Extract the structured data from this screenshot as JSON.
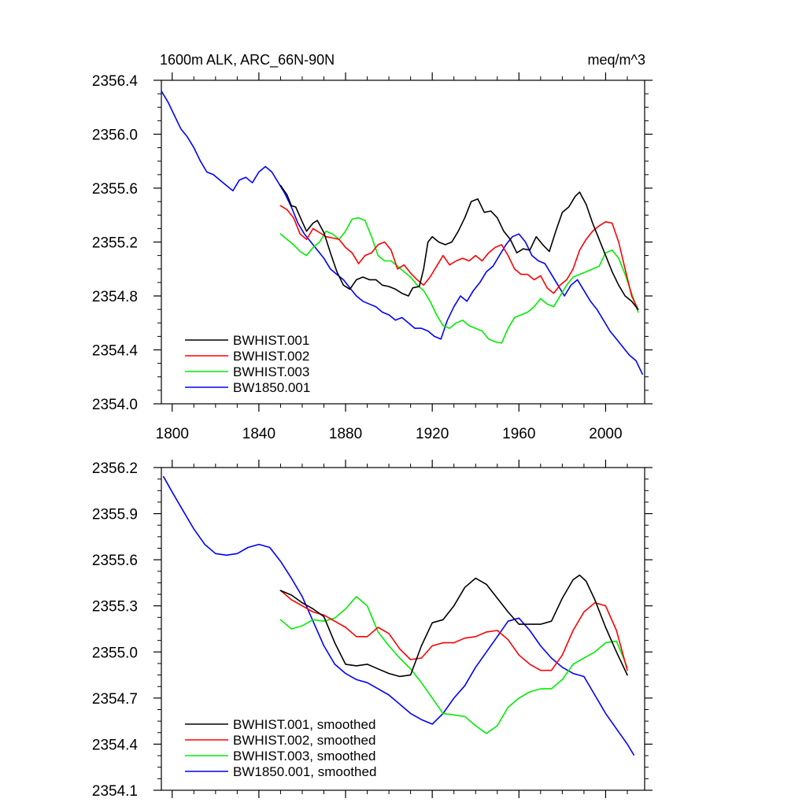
{
  "colors": {
    "BWHIST.001": "#000000",
    "BWHIST.002": "#ff0000",
    "BWHIST.003": "#00ee00",
    "BW1850.001": "#0000ff"
  },
  "chart_data": [
    {
      "type": "line",
      "title_left": "1600m ALK, ARC_66N-90N",
      "title_right": "meq/m^3",
      "xlim": [
        1795,
        2018
      ],
      "ylim": [
        2354.0,
        2356.4
      ],
      "xticks": [
        1800,
        1840,
        1880,
        1920,
        1960,
        2000
      ],
      "yticks": [
        2354.0,
        2354.4,
        2354.8,
        2355.2,
        2355.6,
        2356.0,
        2356.4
      ],
      "ytick_labels": [
        "2354.0",
        "2354.4",
        "2354.8",
        "2355.2",
        "2355.6",
        "2356.0",
        "2356.4"
      ],
      "show_xtick_labels": true,
      "legend_position": "bottom-left",
      "series": [
        {
          "name": "BWHIST.001",
          "x": [
            1850,
            1853,
            1855,
            1857,
            1860,
            1862,
            1865,
            1867,
            1870,
            1873,
            1876,
            1879,
            1882,
            1885,
            1888,
            1891,
            1894,
            1897,
            1900,
            1903,
            1906,
            1909,
            1911,
            1914,
            1916,
            1918,
            1920,
            1923,
            1926,
            1929,
            1932,
            1935,
            1938,
            1941,
            1944,
            1947,
            1950,
            1953,
            1956,
            1959,
            1962,
            1965,
            1968,
            1971,
            1974,
            1977,
            1980,
            1983,
            1986,
            1988,
            1991,
            1994,
            1997,
            2000,
            2003,
            2006,
            2009,
            2012,
            2015
          ],
          "values": [
            2355.62,
            2355.55,
            2355.47,
            2355.46,
            2355.35,
            2355.28,
            2355.34,
            2355.36,
            2355.27,
            2355.12,
            2354.98,
            2354.88,
            2354.85,
            2354.92,
            2354.94,
            2354.92,
            2354.92,
            2354.88,
            2354.87,
            2354.85,
            2354.82,
            2354.8,
            2354.86,
            2354.87,
            2355.0,
            2355.2,
            2355.24,
            2355.2,
            2355.18,
            2355.2,
            2355.28,
            2355.38,
            2355.5,
            2355.52,
            2355.42,
            2355.43,
            2355.38,
            2355.28,
            2355.22,
            2355.12,
            2355.15,
            2355.14,
            2355.24,
            2355.18,
            2355.13,
            2355.28,
            2355.42,
            2355.46,
            2355.54,
            2355.57,
            2355.48,
            2355.34,
            2355.22,
            2355.1,
            2354.98,
            2354.88,
            2354.8,
            2354.76,
            2354.7
          ]
        },
        {
          "name": "BWHIST.002",
          "x": [
            1850,
            1853,
            1856,
            1859,
            1862,
            1865,
            1868,
            1871,
            1874,
            1877,
            1880,
            1883,
            1886,
            1889,
            1892,
            1895,
            1898,
            1901,
            1904,
            1907,
            1910,
            1913,
            1916,
            1919,
            1922,
            1925,
            1928,
            1931,
            1934,
            1937,
            1940,
            1943,
            1946,
            1949,
            1952,
            1955,
            1958,
            1961,
            1964,
            1967,
            1970,
            1973,
            1976,
            1979,
            1982,
            1985,
            1988,
            1991,
            1994,
            1997,
            2000,
            2003,
            2006,
            2009,
            2012,
            2015
          ],
          "values": [
            2355.47,
            2355.44,
            2355.38,
            2355.26,
            2355.22,
            2355.3,
            2355.27,
            2355.24,
            2355.23,
            2355.22,
            2355.16,
            2355.12,
            2355.04,
            2355.1,
            2355.12,
            2355.18,
            2355.2,
            2355.14,
            2355.0,
            2355.03,
            2354.97,
            2354.92,
            2354.88,
            2354.94,
            2355.02,
            2355.1,
            2355.03,
            2355.06,
            2355.08,
            2355.06,
            2355.1,
            2355.06,
            2355.12,
            2355.16,
            2355.18,
            2355.1,
            2355.0,
            2354.96,
            2354.96,
            2354.92,
            2354.95,
            2354.86,
            2354.82,
            2354.88,
            2354.92,
            2355.0,
            2355.14,
            2355.22,
            2355.28,
            2355.32,
            2355.35,
            2355.34,
            2355.2,
            2355.0,
            2354.8,
            2354.7
          ]
        },
        {
          "name": "BWHIST.003",
          "x": [
            1850,
            1853,
            1856,
            1859,
            1862,
            1865,
            1868,
            1871,
            1874,
            1877,
            1880,
            1883,
            1886,
            1889,
            1892,
            1895,
            1898,
            1901,
            1904,
            1907,
            1910,
            1913,
            1916,
            1919,
            1922,
            1925,
            1928,
            1931,
            1934,
            1937,
            1940,
            1943,
            1946,
            1949,
            1952,
            1955,
            1958,
            1961,
            1964,
            1967,
            1970,
            1973,
            1976,
            1979,
            1982,
            1985,
            1988,
            1991,
            1994,
            1997,
            2000,
            2003,
            2006,
            2009,
            2012,
            2015
          ],
          "values": [
            2355.26,
            2355.22,
            2355.18,
            2355.13,
            2355.1,
            2355.16,
            2355.2,
            2355.28,
            2355.26,
            2355.22,
            2355.28,
            2355.37,
            2355.38,
            2355.36,
            2355.24,
            2355.1,
            2355.06,
            2355.06,
            2355.02,
            2354.98,
            2354.94,
            2354.88,
            2354.84,
            2354.76,
            2354.66,
            2354.58,
            2354.56,
            2354.6,
            2354.62,
            2354.58,
            2354.56,
            2354.54,
            2354.48,
            2354.46,
            2354.45,
            2354.56,
            2354.64,
            2354.66,
            2354.68,
            2354.72,
            2354.78,
            2354.74,
            2354.72,
            2354.8,
            2354.88,
            2354.94,
            2354.96,
            2354.98,
            2355.0,
            2355.02,
            2355.12,
            2355.14,
            2355.08,
            2354.96,
            2354.82,
            2354.68
          ]
        },
        {
          "name": "BW1850.001",
          "x": [
            1795,
            1798,
            1801,
            1804,
            1807,
            1810,
            1813,
            1816,
            1819,
            1822,
            1825,
            1828,
            1831,
            1834,
            1837,
            1840,
            1843,
            1846,
            1849,
            1852,
            1855,
            1858,
            1861,
            1864,
            1867,
            1870,
            1873,
            1876,
            1879,
            1882,
            1885,
            1888,
            1891,
            1894,
            1897,
            1900,
            1903,
            1906,
            1909,
            1912,
            1915,
            1918,
            1921,
            1924,
            1927,
            1930,
            1933,
            1936,
            1939,
            1942,
            1945,
            1948,
            1951,
            1954,
            1957,
            1960,
            1963,
            1966,
            1969,
            1972,
            1975,
            1978,
            1981,
            1984,
            1987,
            1990,
            1993,
            1996,
            1999,
            2002,
            2005,
            2008,
            2011,
            2014,
            2017
          ],
          "values": [
            2356.32,
            2356.24,
            2356.14,
            2356.04,
            2355.98,
            2355.9,
            2355.8,
            2355.72,
            2355.7,
            2355.66,
            2355.62,
            2355.58,
            2355.66,
            2355.68,
            2355.64,
            2355.72,
            2355.76,
            2355.72,
            2355.64,
            2355.56,
            2355.46,
            2355.34,
            2355.26,
            2355.2,
            2355.14,
            2355.08,
            2355.0,
            2354.96,
            2354.92,
            2354.86,
            2354.8,
            2354.76,
            2354.74,
            2354.72,
            2354.68,
            2354.66,
            2354.62,
            2354.64,
            2354.6,
            2354.56,
            2354.56,
            2354.54,
            2354.5,
            2354.48,
            2354.62,
            2354.72,
            2354.8,
            2354.76,
            2354.84,
            2354.9,
            2354.98,
            2355.02,
            2355.1,
            2355.18,
            2355.24,
            2355.26,
            2355.2,
            2355.1,
            2355.06,
            2355.04,
            2354.96,
            2354.88,
            2354.8,
            2354.88,
            2354.92,
            2354.84,
            2354.76,
            2354.7,
            2354.62,
            2354.54,
            2354.48,
            2354.42,
            2354.36,
            2354.32,
            2354.22
          ]
        }
      ]
    },
    {
      "type": "line",
      "xlim": [
        1795,
        2018
      ],
      "ylim": [
        2354.1,
        2356.2
      ],
      "xticks": [
        1800,
        1840,
        1880,
        1920,
        1960,
        2000
      ],
      "yticks": [
        2354.1,
        2354.4,
        2354.7,
        2355.0,
        2355.3,
        2355.6,
        2355.9,
        2356.2
      ],
      "ytick_labels": [
        "2354.1",
        "2354.4",
        "2354.7",
        "2355.0",
        "2355.3",
        "2355.6",
        "2355.9",
        "2356.2"
      ],
      "show_xtick_labels": false,
      "legend_position": "bottom-left",
      "series": [
        {
          "name": "BWHIST.001, smoothed",
          "x": [
            1850,
            1855,
            1860,
            1865,
            1870,
            1875,
            1880,
            1885,
            1890,
            1895,
            1900,
            1905,
            1910,
            1915,
            1920,
            1925,
            1930,
            1935,
            1940,
            1945,
            1950,
            1955,
            1960,
            1965,
            1970,
            1975,
            1980,
            1985,
            1988,
            1991,
            1995,
            2000,
            2005,
            2010
          ],
          "values": [
            2355.4,
            2355.37,
            2355.32,
            2355.28,
            2355.23,
            2355.06,
            2354.92,
            2354.91,
            2354.92,
            2354.89,
            2354.86,
            2354.84,
            2354.85,
            2355.04,
            2355.19,
            2355.21,
            2355.3,
            2355.42,
            2355.48,
            2355.44,
            2355.35,
            2355.26,
            2355.18,
            2355.18,
            2355.18,
            2355.2,
            2355.35,
            2355.47,
            2355.5,
            2355.46,
            2355.34,
            2355.16,
            2355.0,
            2354.85
          ]
        },
        {
          "name": "BWHIST.002, smoothed",
          "x": [
            1850,
            1855,
            1860,
            1865,
            1870,
            1875,
            1880,
            1885,
            1890,
            1895,
            1900,
            1905,
            1910,
            1915,
            1920,
            1925,
            1930,
            1935,
            1940,
            1945,
            1950,
            1955,
            1960,
            1965,
            1970,
            1975,
            1980,
            1985,
            1990,
            1995,
            2000,
            2005,
            2010
          ],
          "values": [
            2355.4,
            2355.34,
            2355.3,
            2355.26,
            2355.24,
            2355.2,
            2355.16,
            2355.1,
            2355.1,
            2355.16,
            2355.12,
            2355.02,
            2354.95,
            2354.96,
            2355.04,
            2355.06,
            2355.06,
            2355.09,
            2355.1,
            2355.13,
            2355.14,
            2355.08,
            2354.98,
            2354.92,
            2354.88,
            2354.88,
            2354.98,
            2355.14,
            2355.26,
            2355.32,
            2355.3,
            2355.14,
            2354.88
          ]
        },
        {
          "name": "BWHIST.003, smoothed",
          "x": [
            1850,
            1855,
            1860,
            1865,
            1870,
            1875,
            1880,
            1885,
            1890,
            1895,
            1900,
            1905,
            1910,
            1915,
            1920,
            1925,
            1930,
            1935,
            1940,
            1945,
            1950,
            1955,
            1960,
            1965,
            1970,
            1975,
            1980,
            1985,
            1990,
            1995,
            2000,
            2005,
            2010
          ],
          "values": [
            2355.21,
            2355.15,
            2355.17,
            2355.21,
            2355.2,
            2355.22,
            2355.28,
            2355.36,
            2355.3,
            2355.13,
            2355.04,
            2354.96,
            2354.89,
            2354.8,
            2354.7,
            2354.6,
            2354.59,
            2354.58,
            2354.52,
            2354.47,
            2354.52,
            2354.64,
            2354.7,
            2354.74,
            2354.76,
            2354.76,
            2354.82,
            2354.92,
            2354.96,
            2355.0,
            2355.06,
            2355.07,
            2354.9
          ]
        },
        {
          "name": "BW1850.001, smoothed",
          "x": [
            1796,
            1800,
            1805,
            1810,
            1815,
            1820,
            1825,
            1830,
            1835,
            1840,
            1845,
            1850,
            1855,
            1860,
            1865,
            1870,
            1875,
            1880,
            1885,
            1890,
            1895,
            1900,
            1905,
            1910,
            1915,
            1920,
            1925,
            1930,
            1935,
            1940,
            1945,
            1950,
            1955,
            1960,
            1965,
            1970,
            1975,
            1980,
            1985,
            1990,
            1995,
            2000,
            2005,
            2010,
            2013
          ],
          "values": [
            2356.14,
            2356.04,
            2355.92,
            2355.8,
            2355.7,
            2355.64,
            2355.63,
            2355.64,
            2355.68,
            2355.7,
            2355.68,
            2355.59,
            2355.48,
            2355.36,
            2355.2,
            2355.04,
            2354.92,
            2354.86,
            2354.82,
            2354.8,
            2354.76,
            2354.72,
            2354.66,
            2354.6,
            2354.56,
            2354.53,
            2354.6,
            2354.7,
            2354.78,
            2354.9,
            2355.0,
            2355.1,
            2355.2,
            2355.22,
            2355.14,
            2355.04,
            2354.96,
            2354.9,
            2354.86,
            2354.84,
            2354.72,
            2354.6,
            2354.5,
            2354.4,
            2354.33
          ]
        }
      ]
    }
  ]
}
